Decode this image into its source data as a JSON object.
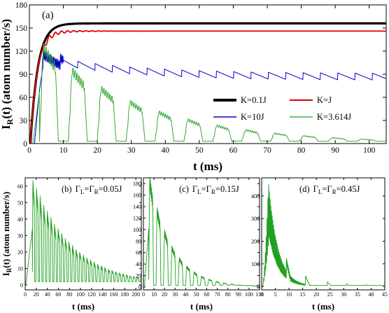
{
  "chart_data": [
    {
      "type": "line",
      "panel_label": "(a)",
      "xlabel": "t (ms)",
      "ylabel": "I_R(t) (atom number/s)",
      "ylabel_main": "I",
      "ylabel_sub": "R",
      "ylabel_rest": "(t) (atom number/s)",
      "xlim": [
        0,
        105
      ],
      "ylim": [
        0,
        180
      ],
      "xticks": [
        0,
        10,
        20,
        30,
        40,
        50,
        60,
        70,
        80,
        90,
        100
      ],
      "yticks": [
        0,
        30,
        60,
        90,
        120,
        150,
        180
      ],
      "legend_position": "center-right",
      "series": [
        {
          "name": "K=0.1J",
          "color": "#000000",
          "model": "sat",
          "plateau": 156,
          "tau": 2.2,
          "t0": 0.3
        },
        {
          "name": "K=J",
          "color": "#e00000",
          "model": "sat_osc",
          "plateau": 146,
          "tau": 2.0,
          "t0": 0.3,
          "osc_amp": 8,
          "osc_period": 1.8,
          "osc_decay": 6
        },
        {
          "name": "K=10J",
          "color": "#0000cc",
          "model": "sawtooth",
          "peak": 112,
          "tail": 88,
          "rise_t": 4,
          "period": 5.1,
          "drop": 9
        },
        {
          "name": "K=3.614J",
          "color": "#22a022",
          "model": "pulses",
          "first_peak": 125,
          "period": 8.5,
          "decay": 0.28,
          "floor": 3
        }
      ]
    },
    {
      "type": "line",
      "panel_label": "(b)",
      "gamma_text": "Γ",
      "sub_L": "L",
      "sub_R": "R",
      "gamma_value": "=0.05J",
      "xlabel": "t (ms)",
      "ylabel": "I_R(t) (atom number/s)",
      "ylabel_main": "I",
      "ylabel_sub": "R",
      "ylabel_rest": "(t) (atom number/s)",
      "xlim": [
        0,
        210
      ],
      "ylim": [
        -3,
        65
      ],
      "xticks": [
        0,
        20,
        40,
        60,
        80,
        100,
        120,
        140,
        160,
        180,
        200
      ],
      "yticks": [
        0,
        10,
        20,
        30,
        40,
        50,
        60
      ],
      "series": [
        {
          "name": "",
          "color": "#22a022",
          "model": "pulses",
          "first_peak": 62,
          "period": 6.5,
          "decay": 0.09,
          "floor": 2,
          "start": 13
        }
      ]
    },
    {
      "type": "line",
      "panel_label": "(c)",
      "gamma_text": "Γ",
      "sub_L": "L",
      "sub_R": "R",
      "gamma_value": "=0.15J",
      "xlabel": "t (ms)",
      "xlim": [
        0,
        110
      ],
      "ylim": [
        -5,
        190
      ],
      "xticks": [
        0,
        10,
        20,
        30,
        40,
        50,
        60,
        70,
        80,
        90,
        100,
        110
      ],
      "yticks": [
        0,
        20,
        40,
        60,
        80,
        100,
        120,
        140,
        160,
        180
      ],
      "series": [
        {
          "name": "",
          "color": "#22a022",
          "model": "pulses",
          "first_peak": 185,
          "period": 7.0,
          "decay": 0.33,
          "floor": 3,
          "start": 5
        }
      ]
    },
    {
      "type": "line",
      "panel_label": "(d)",
      "gamma_text": "Γ",
      "sub_L": "L",
      "sub_R": "R",
      "gamma_value": "=0.45J",
      "xlabel": "t (ms)",
      "xlim": [
        0,
        45
      ],
      "ylim": [
        -15,
        480
      ],
      "xticks": [
        0,
        5,
        10,
        15,
        20,
        25,
        30,
        35,
        40,
        45
      ],
      "yticks": [
        0,
        100,
        200,
        300,
        400
      ],
      "series": [
        {
          "name": "",
          "color": "#22a022",
          "model": "spike",
          "peak": 460,
          "t_peak": 2.5,
          "decay_tau": 3.5,
          "floor": 5
        }
      ]
    }
  ]
}
